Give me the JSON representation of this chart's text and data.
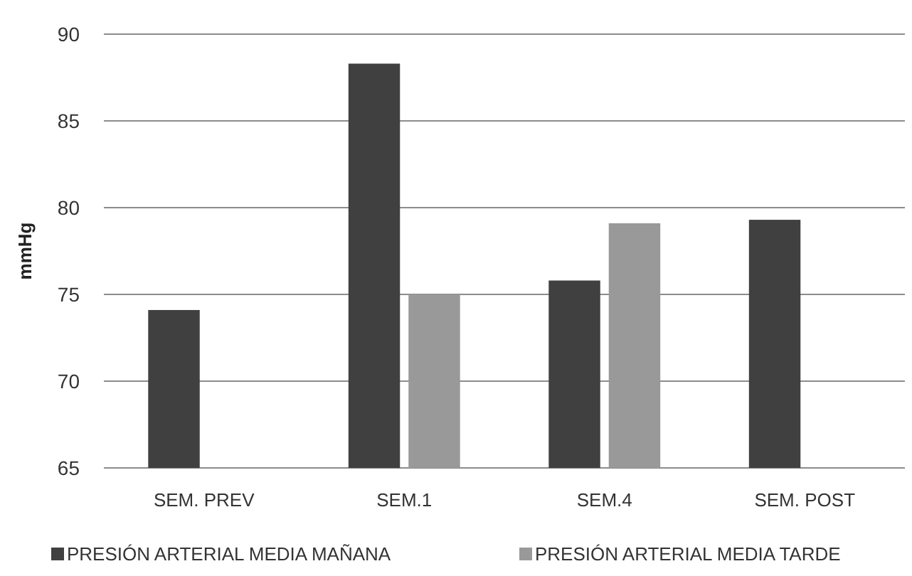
{
  "chart_data": {
    "type": "bar",
    "ylabel": "mmHg",
    "categories": [
      "SEM. PREV",
      "SEM.1",
      "SEM.4",
      "SEM. POST"
    ],
    "series": [
      {
        "name": "PRESIÓN ARTERIAL MEDIA MAÑANA",
        "color": "#404040",
        "values": [
          74.1,
          88.3,
          75.8,
          79.3
        ]
      },
      {
        "name": "PRESIÓN ARTERIAL MEDIA TARDE",
        "color": "#999999",
        "values": [
          null,
          75.0,
          79.1,
          null
        ]
      }
    ],
    "ylim": [
      65,
      90
    ],
    "yticks": [
      65,
      70,
      75,
      80,
      85,
      90
    ],
    "grid": "y",
    "legend": "bottom"
  }
}
